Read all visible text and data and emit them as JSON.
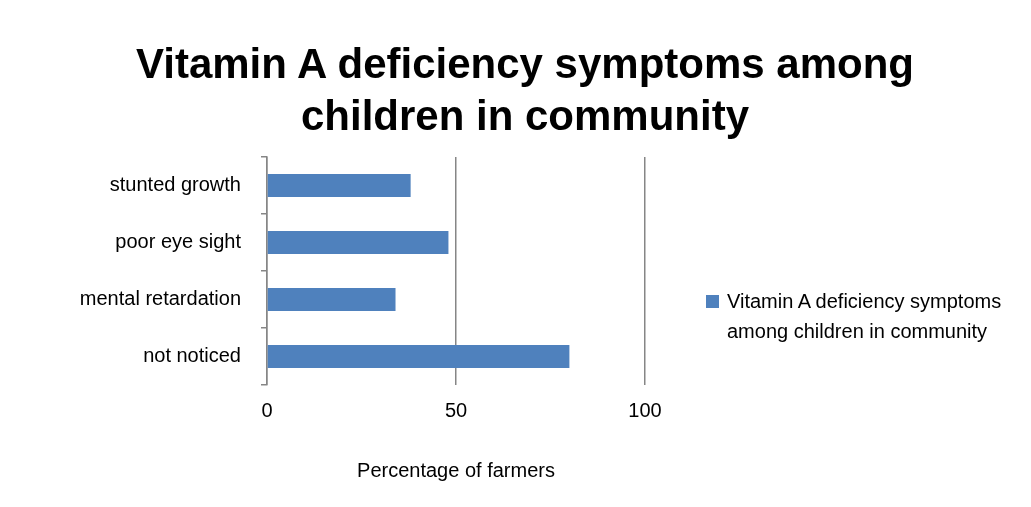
{
  "chart_data": {
    "type": "bar",
    "orientation": "horizontal",
    "title": "Vitamin A deficiency symptoms among children in community",
    "xlabel": "Percentage of farmers",
    "categories": [
      "stunted growth",
      "poor eye sight",
      "mental retardation",
      "not noticed"
    ],
    "series": [
      {
        "name": "Vitamin A deficiency symptoms among children in community",
        "color": "#4f81bd",
        "values": [
          38,
          48,
          34,
          80
        ]
      }
    ],
    "xlim": [
      0,
      100
    ],
    "xticks": [
      0,
      50,
      100
    ],
    "grid": "x",
    "legend": "right"
  }
}
